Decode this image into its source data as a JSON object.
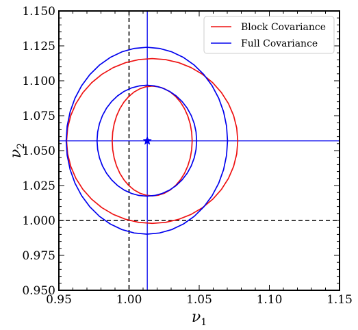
{
  "chart_data": {
    "type": "line",
    "title": "",
    "xlabel": "ν",
    "xlabel_sub": "1",
    "ylabel": "ν",
    "ylabel_sub": "2",
    "xlim": [
      0.95,
      1.15
    ],
    "ylim": [
      0.95,
      1.15
    ],
    "x_ticks": [
      "0.95",
      "1.00",
      "1.05",
      "1.10",
      "1.15"
    ],
    "y_ticks": [
      "0.950",
      "0.975",
      "1.000",
      "1.025",
      "1.050",
      "1.075",
      "1.100",
      "1.125",
      "1.150"
    ],
    "grid": false,
    "legend_position": "top-right",
    "reference_lines": {
      "x": 1.0,
      "y": 1.0,
      "style": "dashed",
      "color": "#000000"
    },
    "best_fit": {
      "x": 1.013,
      "y": 1.057,
      "marker": "star",
      "color": "#0000ee"
    },
    "series": [
      {
        "name": "Block Covariance",
        "color": "#ee1111",
        "center": [
          1.0165,
          1.0569
        ],
        "contours": [
          {
            "semi_axis_x": 0.0285,
            "semi_axis_y": 0.0393
          },
          {
            "semi_axis_x": 0.061,
            "semi_axis_y": 0.059
          }
        ]
      },
      {
        "name": "Full Covariance",
        "color": "#0000ee",
        "center": [
          1.0127,
          1.0571
        ],
        "contours": [
          {
            "semi_axis_x": 0.0355,
            "semi_axis_y": 0.0397
          },
          {
            "semi_axis_x": 0.0575,
            "semi_axis_y": 0.0669
          }
        ]
      }
    ]
  }
}
